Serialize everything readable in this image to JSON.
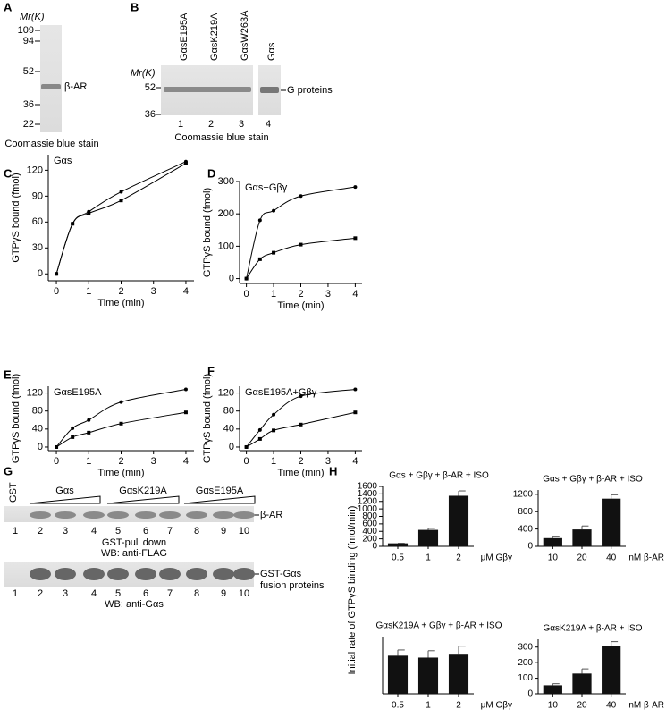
{
  "figure": {
    "A": {
      "panel": "A",
      "mr_label": "Mr(K)",
      "markers": [
        109,
        94,
        52,
        36,
        22
      ],
      "band_label": "β-AR",
      "caption": "Coomassie blue stain"
    },
    "B": {
      "panel": "B",
      "mr_label": "Mr(K)",
      "lanes": [
        "GαsE195A",
        "GαsK219A",
        "GαsW263A",
        "Gαs"
      ],
      "lane_numbers": [
        1,
        2,
        3,
        4
      ],
      "markers": [
        52,
        36
      ],
      "band_label": "G proteins",
      "caption": "Coomassie blue stain"
    },
    "G": {
      "panel": "G",
      "gst": "GST",
      "groups": [
        "Gαs",
        "GαsK219A",
        "GαsE195A"
      ],
      "blots": [
        {
          "lane_numbers": [
            1,
            2,
            3,
            4,
            5,
            6,
            7,
            8,
            9,
            10
          ],
          "band_label": [
            "β-AR"
          ],
          "captions": [
            "GST-pull down",
            "WB: anti-FLAG"
          ]
        },
        {
          "lane_numbers": [
            1,
            2,
            3,
            4,
            5,
            6,
            7,
            8,
            9,
            10
          ],
          "band_label": [
            "GST-Gαs",
            "fusion proteins"
          ],
          "captions": [
            "WB: anti-Gαs"
          ]
        }
      ]
    },
    "H": {
      "panel": "H",
      "y_label": "Initial rate of GTPγS binding (fmol/min)"
    }
  },
  "chart_data": [
    {
      "type": "line",
      "panel": "C",
      "title": "Gαs",
      "xlabel": "Time (min)",
      "ylabel": "GTPγS bound (fmol)",
      "x": [
        0,
        0.5,
        1,
        2,
        4
      ],
      "xlim": [
        -0.25,
        4.25
      ],
      "xticks": [
        0,
        1,
        2,
        3,
        4
      ],
      "ylim": [
        -8,
        138
      ],
      "yticks": [
        0,
        30,
        60,
        90,
        120
      ],
      "series": [
        {
          "color": "#000000",
          "marker": "circle",
          "values": [
            0,
            58,
            72,
            95,
            130
          ]
        },
        {
          "color": "#000000",
          "marker": "square",
          "values": [
            0,
            58,
            70,
            85,
            128
          ]
        }
      ]
    },
    {
      "type": "line",
      "panel": "D",
      "title": "Gαs+Gβγ",
      "xlabel": "Time (min)",
      "ylabel": "GTPγS bound (fmol)",
      "x": [
        0,
        0.5,
        1,
        2,
        4
      ],
      "xlim": [
        -0.25,
        4.25
      ],
      "xticks": [
        0,
        1,
        2,
        3,
        4
      ],
      "ylim": [
        -15,
        300
      ],
      "yticks": [
        0,
        100,
        200,
        300
      ],
      "series": [
        {
          "color": "#000000",
          "marker": "circle",
          "values": [
            0,
            180,
            210,
            255,
            283
          ]
        },
        {
          "color": "#000000",
          "marker": "square",
          "values": [
            0,
            60,
            80,
            105,
            125
          ]
        }
      ]
    },
    {
      "type": "line",
      "panel": "E",
      "title": "GαsE195A",
      "xlabel": "Time (min)",
      "ylabel": "GTPγS bound (fmol)",
      "x": [
        0,
        0.5,
        1,
        2,
        4
      ],
      "xlim": [
        -0.25,
        4.25
      ],
      "xticks": [
        0,
        1,
        2,
        3,
        4
      ],
      "ylim": [
        -8,
        135
      ],
      "yticks": [
        0,
        40,
        80,
        120
      ],
      "series": [
        {
          "color": "#000000",
          "marker": "circle",
          "values": [
            0,
            42,
            60,
            100,
            128
          ]
        },
        {
          "color": "#000000",
          "marker": "square",
          "values": [
            0,
            22,
            32,
            52,
            77
          ]
        }
      ]
    },
    {
      "type": "line",
      "panel": "F",
      "title": "GαsE195A+Gβγ",
      "xlabel": "Time (min)",
      "ylabel": "GTPγS bound (fmol)",
      "x": [
        0,
        0.5,
        1,
        2,
        4
      ],
      "xlim": [
        -0.25,
        4.25
      ],
      "xticks": [
        0,
        1,
        2,
        3,
        4
      ],
      "ylim": [
        -8,
        135
      ],
      "yticks": [
        0,
        40,
        80,
        120
      ],
      "series": [
        {
          "color": "#000000",
          "marker": "circle",
          "values": [
            0,
            38,
            72,
            113,
            128
          ]
        },
        {
          "color": "#000000",
          "marker": "square",
          "values": [
            0,
            18,
            37,
            50,
            77
          ]
        }
      ]
    },
    {
      "type": "bar",
      "title": "Gαs + Gβγ + β-AR + ISO",
      "categories": [
        "0.5",
        "1",
        "2"
      ],
      "x_unit": "μM Gβγ",
      "values": [
        80,
        440,
        1350
      ],
      "errors": [
        0,
        40,
        130
      ],
      "color": "#111111",
      "ylim": [
        0,
        1600
      ],
      "yticks": [
        0,
        200,
        400,
        600,
        800,
        1000,
        1200,
        1400,
        1600
      ]
    },
    {
      "type": "bar",
      "title": "Gαs + Gβγ + β-AR + ISO",
      "categories": [
        "10",
        "20",
        "40"
      ],
      "x_unit": "nM β-AR",
      "values": [
        190,
        390,
        1100
      ],
      "errors": [
        30,
        80,
        90
      ],
      "color": "#111111",
      "ylim": [
        0,
        1300
      ],
      "yticks": [
        0,
        400,
        800,
        1200
      ]
    },
    {
      "type": "bar",
      "title": "GαsK219A + Gβγ + β-AR + ISO",
      "categories": [
        "0.5",
        "1",
        "2"
      ],
      "x_unit": "μM Gβγ",
      "values": [
        100,
        95,
        105
      ],
      "errors": [
        15,
        18,
        20
      ],
      "color": "#111111",
      "ylim": [
        0,
        150
      ]
    },
    {
      "type": "bar",
      "title": "GαsK219A + β-AR + ISO",
      "categories": [
        "10",
        "20",
        "40"
      ],
      "x_unit": "nM β-AR",
      "values": [
        55,
        130,
        305
      ],
      "errors": [
        10,
        30,
        30
      ],
      "color": "#111111",
      "ylim": [
        0,
        350
      ],
      "yticks": [
        0,
        100,
        200,
        300
      ]
    }
  ]
}
